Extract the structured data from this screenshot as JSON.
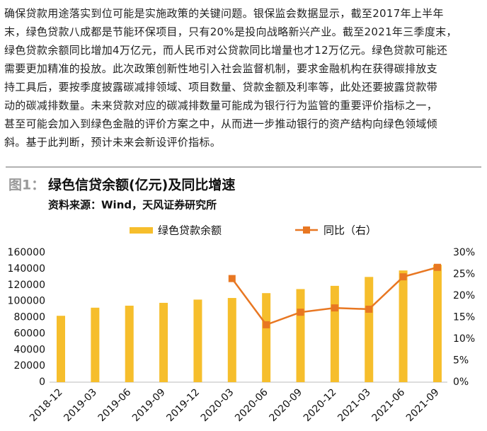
{
  "paragraph_lines": [
    "确保贷款用途落实到位可能是实施政策的关键问题。银保监会数据显示，截至2017年上半年",
    "末，绿色贷款八成都是节能环保项目，只有20%是投向战略新兴产业。截至2021年三季度末，",
    "绿色贷款余额同比增加4万亿元，而人民币对公贷款同比增量也才12万亿元。绿色贷款可能还",
    "需要更加精准的投放。此次政策创新性地引入社会监督机制，要求金融机构在获得碳排放支",
    "持工具后，要按季度披露碳减排领域、项目数量、贷款金额及利率等，此处还要披露贷款带",
    "动的碳减排数量。未来贷款对应的碳减排数量可能成为银行行为监管的重要评价指标之一，",
    "甚至可能会加入到绿色金融的评价方案之中，从而进一步推动银行的资产结构向绿色领域倾",
    "斜。基于此判断，预计未来会新设评价指标。"
  ],
  "chart_data": {
    "type": "bar-line",
    "figure_label": "图1：",
    "title": "绿色信贷余额(亿元)及同比增速",
    "source": "资料来源：Wind，天风证券研究所",
    "categories": [
      "2018-12",
      "2019-03",
      "2019-06",
      "2019-09",
      "2019-12",
      "2020-03",
      "2020-06",
      "2020-09",
      "2020-12",
      "2021-03",
      "2021-06",
      "2021-09"
    ],
    "series": [
      {
        "name": "绿色贷款余额",
        "type": "bar",
        "color": "#f6be2c",
        "values": [
          82000,
          92000,
          94500,
          98000,
          102000,
          104000,
          110000,
          115000,
          119000,
          130000,
          138000,
          145000
        ]
      },
      {
        "name": "同比（右）",
        "type": "line",
        "axis": "y2",
        "color": "#e87722",
        "values": [
          null,
          null,
          null,
          null,
          null,
          24,
          13.3,
          16.2,
          17.2,
          16.9,
          24.4,
          26.6
        ]
      }
    ],
    "ylim": [
      0,
      160000
    ],
    "yticks": [
      0,
      20000,
      40000,
      60000,
      80000,
      100000,
      120000,
      140000,
      160000
    ],
    "y2lim": [
      0,
      30
    ],
    "y2ticks": [
      {
        "value": 0,
        "label": "0%"
      },
      {
        "value": 5,
        "label": "5%"
      },
      {
        "value": 10,
        "label": "10%"
      },
      {
        "value": 15,
        "label": "15%"
      },
      {
        "value": 20,
        "label": "20%"
      },
      {
        "value": 25,
        "label": "25%"
      },
      {
        "value": 30,
        "label": "30%"
      }
    ]
  }
}
